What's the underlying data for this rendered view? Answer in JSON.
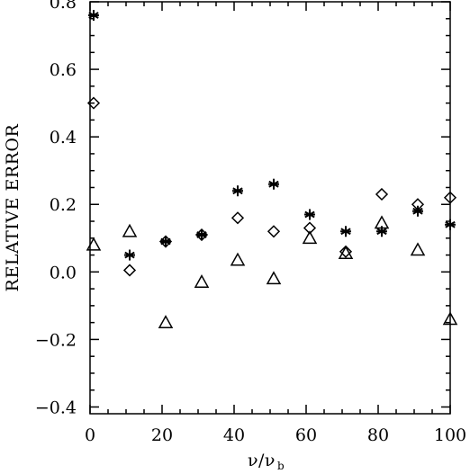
{
  "chart_data": {
    "type": "scatter",
    "title": "",
    "xlabel": "ν/ν",
    "xlabel_subscript": "b",
    "ylabel": "RELATIVE ERROR",
    "xlim": [
      0,
      100
    ],
    "ylim": [
      -0.42,
      0.8
    ],
    "xticks": [
      0,
      20,
      40,
      60,
      80,
      100
    ],
    "xtick_labels": [
      "0",
      "20",
      "40",
      "60",
      "80",
      "100"
    ],
    "yticks": [
      -0.4,
      -0.2,
      0.0,
      0.2,
      0.4,
      0.6,
      0.8
    ],
    "ytick_labels": [
      "−0.4",
      "−0.2",
      "0.0",
      "0.2",
      "0.4",
      "0.6",
      "0.8"
    ],
    "grid": false,
    "legend": "none",
    "series": [
      {
        "marker": "asterisk",
        "x": [
          1,
          11,
          21,
          31,
          41,
          51,
          61,
          71,
          81,
          91,
          100
        ],
        "y": [
          0.76,
          0.05,
          0.09,
          0.11,
          0.24,
          0.26,
          0.17,
          0.12,
          0.12,
          0.18,
          0.14
        ]
      },
      {
        "marker": "diamond",
        "x": [
          1,
          11,
          21,
          31,
          41,
          51,
          61,
          71,
          81,
          91,
          100
        ],
        "y": [
          0.5,
          0.005,
          0.09,
          0.11,
          0.16,
          0.12,
          0.13,
          0.06,
          0.23,
          0.2,
          0.22
        ]
      },
      {
        "marker": "triangle",
        "x": [
          1,
          11,
          21,
          31,
          41,
          51,
          61,
          71,
          81,
          91,
          100
        ],
        "y": [
          0.08,
          0.12,
          -0.15,
          -0.03,
          0.035,
          -0.02,
          0.1,
          0.055,
          0.145,
          0.065,
          -0.14
        ]
      }
    ]
  }
}
